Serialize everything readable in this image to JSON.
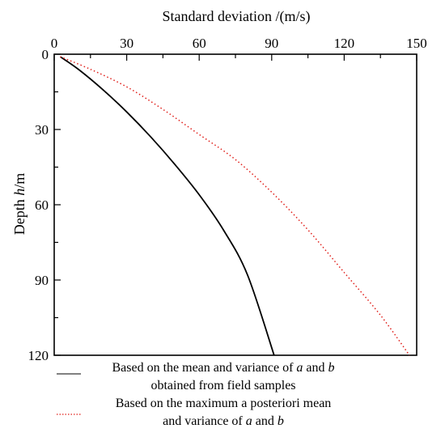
{
  "chart_data": {
    "type": "line",
    "title": "",
    "x_axis": {
      "label": "Standard deviation /(m/s)",
      "position": "top",
      "range": [
        0,
        150
      ],
      "ticks": [
        0,
        30,
        60,
        90,
        120,
        150
      ],
      "tick_labels": [
        "0",
        "30",
        "60",
        "90",
        "120",
        "150"
      ]
    },
    "y_axis": {
      "label_prefix": "Depth ",
      "label_var": "h",
      "label_suffix": "/m",
      "range": [
        0,
        120
      ],
      "inverted": true,
      "ticks": [
        0,
        30,
        60,
        90,
        120
      ],
      "tick_labels": [
        "0",
        "30",
        "60",
        "90",
        "120"
      ]
    },
    "grid": false,
    "series": [
      {
        "style": "solid",
        "color": "#000000",
        "points": [
          [
            2.5,
            1
          ],
          [
            10,
            6
          ],
          [
            20,
            14
          ],
          [
            30,
            23
          ],
          [
            40,
            33
          ],
          [
            50,
            44
          ],
          [
            60,
            56
          ],
          [
            70,
            70
          ],
          [
            80,
            88
          ],
          [
            91,
            120
          ]
        ]
      },
      {
        "style": "dotted",
        "color": "#e0201b",
        "points": [
          [
            2.5,
            1
          ],
          [
            15,
            6
          ],
          [
            30,
            13
          ],
          [
            45,
            22
          ],
          [
            60,
            32
          ],
          [
            75,
            42
          ],
          [
            90,
            55
          ],
          [
            105,
            70
          ],
          [
            120,
            87
          ],
          [
            135,
            104
          ],
          [
            147,
            120
          ]
        ]
      }
    ],
    "legend": {
      "placement": "bottom",
      "entries": [
        {
          "series": 0,
          "line1_a": "Based on the mean and variance of ",
          "line1_var1": "a",
          "line1_b": " and ",
          "line1_var2": "b",
          "line2": "obtained from field samples"
        },
        {
          "series": 1,
          "line1": "Based on the maximum a posteriori mean",
          "line2_a": "and variance of ",
          "line2_var1": "a",
          "line2_b": " and ",
          "line2_var2": "b"
        }
      ]
    }
  }
}
